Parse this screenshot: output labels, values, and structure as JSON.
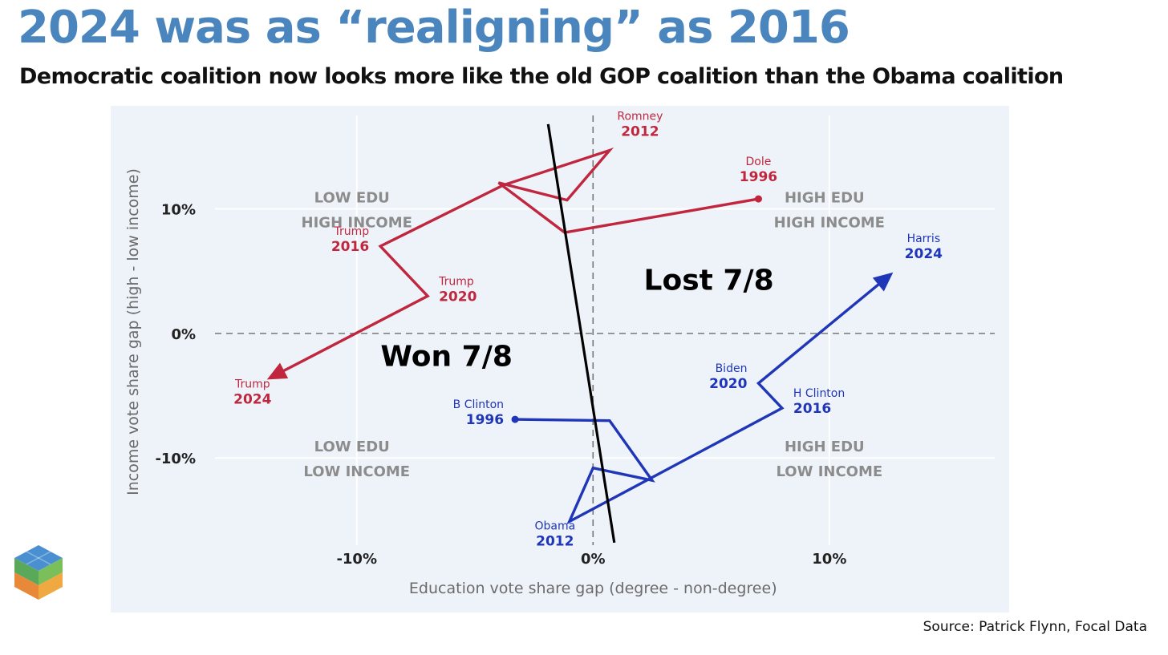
{
  "title": "2024 was as “realigning” as 2016",
  "subtitle": "Democratic coalition now looks more like the old GOP coalition than the Obama coalition",
  "source": "Source: Patrick Flynn, Focal Data",
  "colors": {
    "title": "#4a86bd",
    "republican": "#c0273e",
    "democrat": "#2036b8",
    "panel": "#eef3f9"
  },
  "chart_data": {
    "type": "line",
    "xlabel": "Education vote share gap (degree - non-degree)",
    "ylabel": "Income vote share gap (high - low income)",
    "xlim": [
      -16,
      17
    ],
    "ylim": [
      -17,
      17.5
    ],
    "xticks": [
      {
        "v": -10,
        "label": "-10%"
      },
      {
        "v": 0,
        "label": "0%"
      },
      {
        "v": 10,
        "label": "10%"
      }
    ],
    "yticks": [
      {
        "v": 10,
        "label": "10%"
      },
      {
        "v": 0,
        "label": "0%"
      },
      {
        "v": -10,
        "label": "-10%"
      }
    ],
    "grid": true,
    "quadrants": [
      {
        "line1": "LOW EDU",
        "line2": "HIGH INCOME",
        "x": -10,
        "y": 10
      },
      {
        "line1": "HIGH EDU",
        "line2": "HIGH INCOME",
        "x": 10,
        "y": 10
      },
      {
        "line1": "LOW EDU",
        "line2": "LOW INCOME",
        "x": -10,
        "y": -10
      },
      {
        "line1": "HIGH EDU",
        "line2": "LOW INCOME",
        "x": 10,
        "y": -10
      }
    ],
    "series": [
      {
        "party": "republican",
        "color": "#c0273e",
        "points": [
          {
            "name": "Dole",
            "year": "1996",
            "x": 7,
            "y": 10.8,
            "labeled": true,
            "ldx": 0,
            "ldy": -1
          },
          {
            "x": -1.2,
            "y": 8.1
          },
          {
            "x": -4,
            "y": 12.1
          },
          {
            "x": -1.1,
            "y": 10.7
          },
          {
            "name": "Romney",
            "year": "2012",
            "x": 0.7,
            "y": 14.7,
            "labeled": true,
            "ldx": 1,
            "ldy": -1
          },
          {
            "x": -3.8,
            "y": 11.9
          },
          {
            "name": "Trump",
            "year": "2016",
            "x": -9,
            "y": 7,
            "labeled": true,
            "ldx": -1,
            "ldy": 0
          },
          {
            "name": "Trump",
            "year": "2020",
            "x": -7,
            "y": 3,
            "labeled": true,
            "ldx": 1,
            "ldy": 0
          },
          {
            "name": "Trump",
            "year": "2024",
            "x": -13.8,
            "y": -3.7,
            "labeled": true,
            "ldx": -1,
            "ldy": 1
          }
        ]
      },
      {
        "party": "democrat",
        "color": "#2036b8",
        "points": [
          {
            "name": "B Clinton",
            "year": "1996",
            "x": -3.3,
            "y": -6.9,
            "labeled": true,
            "ldx": -1,
            "ldy": 0
          },
          {
            "x": 0.7,
            "y": -7
          },
          {
            "x": 2.5,
            "y": -11.8
          },
          {
            "x": 0,
            "y": -10.8
          },
          {
            "name": "Obama",
            "year": "2012",
            "x": -1,
            "y": -15.1,
            "labeled": true,
            "ldx": -1,
            "ldy": 1
          },
          {
            "name": "H Clinton",
            "year": "2016",
            "x": 8,
            "y": -6,
            "labeled": true,
            "ldx": 1,
            "ldy": 0
          },
          {
            "name": "Biden",
            "year": "2020",
            "x": 7,
            "y": -4,
            "labeled": true,
            "ldx": -1,
            "ldy": 0
          },
          {
            "name": "Harris",
            "year": "2024",
            "x": 12.7,
            "y": 4.9,
            "labeled": true,
            "ldx": 1,
            "ldy": -1
          }
        ]
      }
    ],
    "divider": {
      "x1": -1.9,
      "y1": 16.8,
      "x2": 0.9,
      "y2": -16.8
    },
    "annotations": [
      {
        "text": "Lost 7/8",
        "x": 4.9,
        "y": 3.5
      },
      {
        "text": "Won 7/8",
        "x": -6.2,
        "y": -2.6
      }
    ]
  }
}
